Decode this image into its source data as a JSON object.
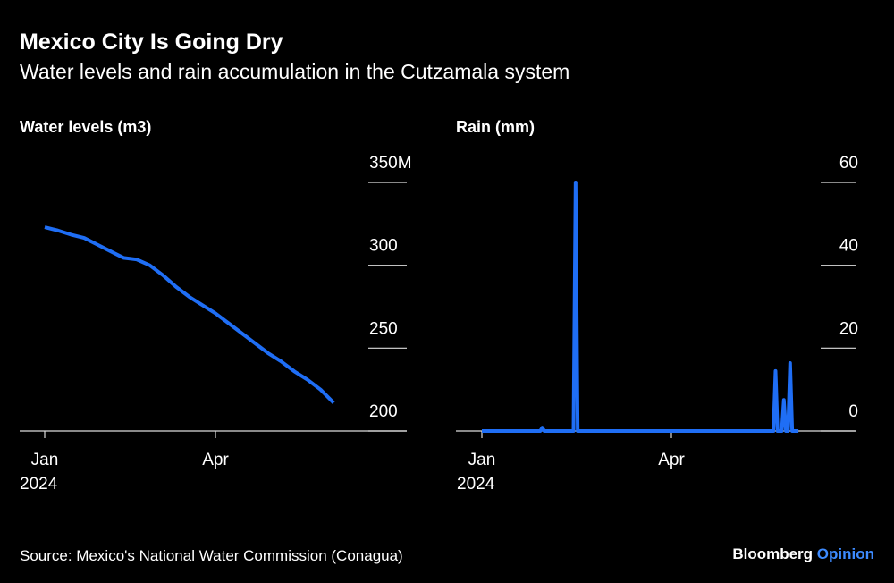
{
  "title": "Mexico City Is Going Dry",
  "subtitle": "Water levels and rain accumulation in the Cutzamala system",
  "source": "Source: Mexico's National Water Commission (Conagua)",
  "brand": {
    "name": "Bloomberg",
    "suffix": "Opinion"
  },
  "chart_data": [
    {
      "type": "line",
      "title": "Water levels (m3)",
      "x_sublabel": "2024",
      "color": "#1f6ef5",
      "categories": [
        "Jan",
        null,
        null,
        null,
        null,
        null,
        null,
        null,
        null,
        null,
        null,
        null,
        null,
        "Apr",
        null,
        null,
        null,
        null,
        null,
        null,
        null,
        null,
        null
      ],
      "values": [
        323,
        321,
        318.5,
        316.5,
        312.5,
        308.5,
        304.5,
        303.5,
        300,
        294,
        287,
        281,
        276,
        271,
        265,
        259,
        253,
        247,
        242,
        236,
        231,
        225,
        217
      ],
      "ylim": [
        200,
        350
      ],
      "yticks": [
        200,
        250,
        300,
        {
          "value": 350,
          "label": "350M"
        }
      ]
    },
    {
      "type": "line",
      "title": "Rain (mm)",
      "x_sublabel": "2024",
      "color": "#1f6ef5",
      "categories": [
        "Jan",
        null,
        null,
        null,
        null,
        null,
        null,
        null,
        null,
        null,
        null,
        null,
        null,
        null,
        null,
        null,
        null,
        null,
        null,
        null,
        null,
        null,
        null,
        null,
        null,
        null,
        null,
        null,
        null,
        null,
        null,
        null,
        null,
        null,
        null,
        null,
        null,
        null,
        null,
        null,
        null,
        null,
        null,
        null,
        null,
        null,
        null,
        null,
        null,
        null,
        null,
        null,
        null,
        null,
        null,
        null,
        null,
        null,
        null,
        null,
        null,
        null,
        null,
        null,
        null,
        null,
        null,
        null,
        null,
        null,
        null,
        null,
        null,
        null,
        null,
        null,
        null,
        null,
        null,
        null,
        null,
        null,
        null,
        null,
        null,
        null,
        null,
        null,
        null,
        null,
        null,
        "Apr",
        null,
        null,
        null,
        null,
        null,
        null,
        null,
        null,
        null,
        null,
        null,
        null,
        null,
        null,
        null,
        null,
        null,
        null,
        null,
        null,
        null,
        null,
        null,
        null,
        null,
        null,
        null,
        null,
        null,
        null,
        null,
        null,
        null,
        null,
        null,
        null,
        null,
        null,
        null,
        null,
        null,
        null,
        null,
        null,
        null,
        null,
        null,
        null,
        null,
        null,
        null,
        null,
        null,
        null,
        null,
        null,
        null,
        null,
        null,
        null,
        null
      ],
      "values": [
        0,
        0,
        0,
        0,
        0,
        0,
        0,
        0,
        0,
        0,
        0,
        0,
        0,
        0,
        0,
        0,
        0,
        0,
        0,
        0,
        0,
        0,
        0,
        0,
        0,
        0,
        0,
        0,
        0,
        0.8,
        0,
        0,
        0,
        0,
        0,
        0,
        0,
        0,
        0,
        0,
        0,
        0,
        0,
        0,
        0,
        60,
        0,
        0,
        0,
        0,
        0,
        0,
        0,
        0,
        0,
        0,
        0,
        0,
        0,
        0,
        0,
        0,
        0,
        0,
        0,
        0,
        0,
        0,
        0,
        0,
        0,
        0,
        0,
        0,
        0,
        0,
        0,
        0,
        0,
        0,
        0,
        0,
        0,
        0,
        0,
        0,
        0,
        0,
        0,
        0,
        0,
        0,
        0,
        0,
        0,
        0,
        0,
        0,
        0,
        0,
        0,
        0,
        0,
        0,
        0,
        0,
        0,
        0,
        0,
        0,
        0,
        0,
        0,
        0,
        0,
        0,
        0,
        0,
        0,
        0,
        0,
        0,
        0,
        0,
        0,
        0,
        0,
        0,
        0,
        0,
        0,
        0,
        0,
        0,
        0,
        0,
        0,
        0,
        0,
        0,
        0,
        14.5,
        0,
        0,
        0,
        7.5,
        0,
        0,
        16.4,
        0,
        0,
        0,
        0
      ],
      "ylim": [
        0,
        60
      ],
      "yticks": [
        0,
        20,
        40,
        60
      ]
    }
  ]
}
